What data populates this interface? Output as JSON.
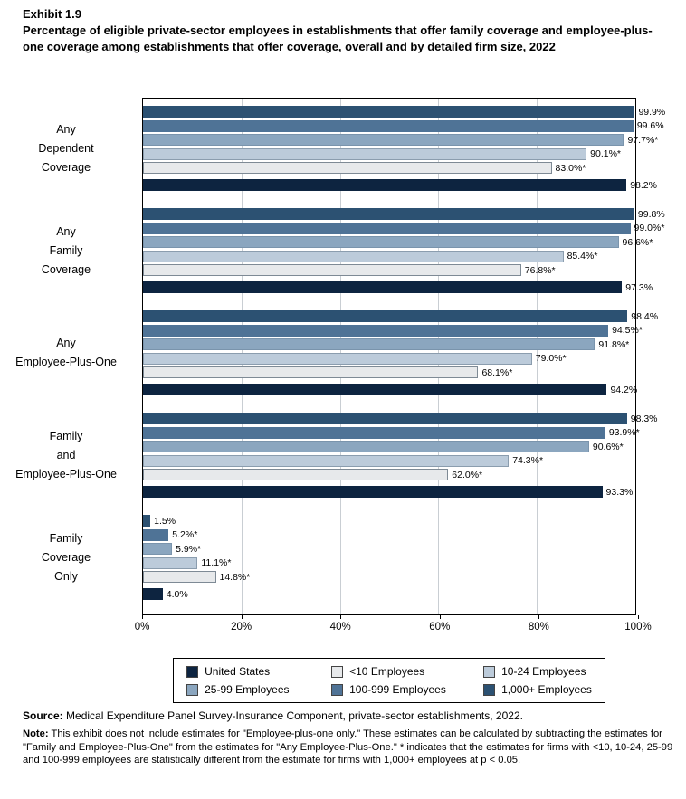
{
  "header": {
    "exhibit": "Exhibit 1.9"
  },
  "chart_data": {
    "type": "bar",
    "orientation": "horizontal",
    "title": "Percentage of eligible private-sector employees in establishments that offer family coverage and employee-plus-one coverage among establishments that offer coverage, overall and by detailed firm size, 2022",
    "xlabel": "",
    "ylabel": "",
    "x_max": 100,
    "x_ticks": [
      "0%",
      "20%",
      "40%",
      "60%",
      "80%",
      "100%"
    ],
    "grid": true,
    "legend_position": "bottom",
    "categories": [
      {
        "label": "Any Dependent Coverage",
        "lines": [
          "Any",
          "Dependent",
          "Coverage"
        ]
      },
      {
        "label": "Any Family Coverage",
        "lines": [
          "Any",
          "Family",
          "Coverage"
        ]
      },
      {
        "label": "Any Employee-Plus-One",
        "lines": [
          "Any",
          "Employee-Plus-One"
        ]
      },
      {
        "label": "Family and Employee-Plus-One",
        "lines": [
          "Family",
          "and",
          "Employee-Plus-One"
        ]
      },
      {
        "label": "Family Coverage Only",
        "lines": [
          "Family",
          "Coverage",
          "Only"
        ]
      }
    ],
    "series": [
      {
        "name": "1,000+ Employees",
        "color": "#2c5172",
        "border": "#2c5172",
        "values": [
          99.9,
          99.8,
          98.4,
          98.3,
          1.5
        ],
        "labels": [
          "99.9%",
          "99.8%",
          "98.4%",
          "98.3%",
          "1.5%"
        ]
      },
      {
        "name": "100-999 Employees",
        "color": "#4f7396",
        "border": "#4f7396",
        "values": [
          99.6,
          99.0,
          94.5,
          93.9,
          5.2
        ],
        "labels": [
          "99.6%",
          "99.0%*",
          "94.5%*",
          "93.9%*",
          "5.2%*"
        ]
      },
      {
        "name": "25-99 Employees",
        "color": "#8ba6bf",
        "border": "#7a94ac",
        "values": [
          97.7,
          96.6,
          91.8,
          90.6,
          5.9
        ],
        "labels": [
          "97.7%*",
          "96.6%*",
          "91.8%*",
          "90.6%*",
          "5.9%*"
        ]
      },
      {
        "name": "10-24 Employees",
        "color": "#bccbda",
        "border": "#8b9dae",
        "values": [
          90.1,
          85.4,
          79.0,
          74.3,
          11.1
        ],
        "labels": [
          "90.1%*",
          "85.4%*",
          "79.0%*",
          "74.3%*",
          "11.1%*"
        ]
      },
      {
        "name": "<10 Employees",
        "color": "#e7e9eb",
        "border": "#7e8a95",
        "values": [
          83.0,
          76.8,
          68.1,
          62.0,
          14.8
        ],
        "labels": [
          "83.0%*",
          "76.8%*",
          "68.1%*",
          "62.0%*",
          "14.8%*"
        ]
      },
      {
        "name": "United States",
        "color": "#0d2440",
        "border": "#0d2440",
        "values": [
          98.2,
          97.3,
          94.2,
          93.3,
          4.0
        ],
        "labels": [
          "98.2%",
          "97.3%",
          "94.2%",
          "93.3%",
          "4.0%"
        ]
      }
    ],
    "legend_rows": [
      [
        "United States",
        "<10 Employees",
        "10-24 Employees"
      ],
      [
        "25-99 Employees",
        "100-999 Employees",
        "1,000+ Employees"
      ]
    ]
  },
  "footer": {
    "source_label": "Source:",
    "source_text": " Medical Expenditure Panel Survey-Insurance Component, private-sector establishments, 2022.",
    "note_label": "Note:",
    "note_text": " This exhibit does not include estimates for \"Employee-plus-one only.\" These estimates can be calculated by subtracting the estimates for \"Family and Employee-Plus-One\" from the estimates for \"Any Employee-Plus-One.\" * indicates that the estimates for firms with <10, 10-24, 25-99 and 100-999 employees are statistically different from the estimate for firms with 1,000+ employees at p < 0.05."
  }
}
